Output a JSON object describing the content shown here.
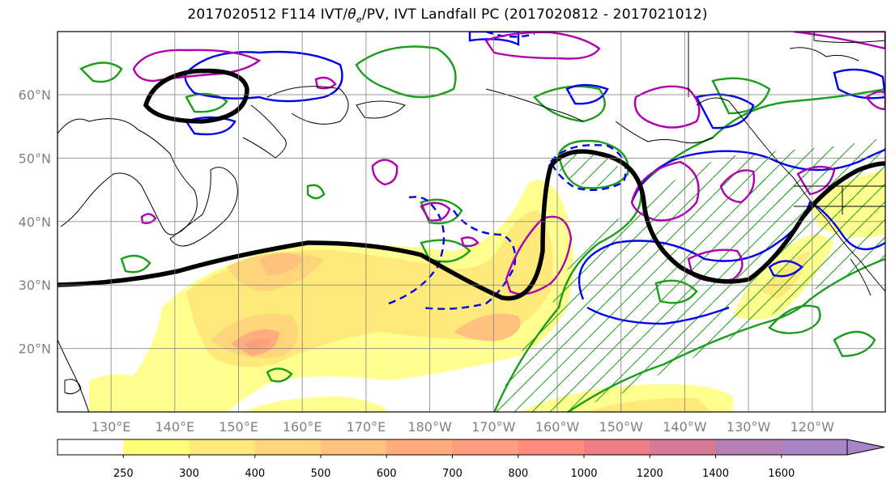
{
  "title_main": "2017020512 F114 IVT/",
  "title_theta": "θ",
  "title_sub": "e",
  "title_rest": "/PV, IVT Landfall PC (2017020812 - 2017021012)",
  "map": {
    "lat_labels": [
      "60°N",
      "50°N",
      "40°N",
      "30°N",
      "20°N"
    ],
    "lon_labels": [
      "130°E",
      "140°E",
      "150°E",
      "160°E",
      "170°E",
      "180°W",
      "170°W",
      "160°W",
      "150°W",
      "140°W",
      "130°W",
      "120°W"
    ],
    "lat_values": [
      60,
      50,
      40,
      30,
      20
    ],
    "lon_values": [
      130,
      140,
      150,
      160,
      170,
      180,
      190,
      200,
      210,
      220,
      230,
      240
    ],
    "extent": {
      "lon": [
        120,
        250
      ],
      "lat": [
        10,
        70
      ]
    },
    "grid": true,
    "contour_colors": {
      "theta_e": "#1a9e1a",
      "pv_positive": "#b000b0",
      "pv_negative": "#0000ee",
      "landfall_pc": "#000000",
      "land": "#000000"
    }
  },
  "colorbar": {
    "ticks": [
      "250",
      "300",
      "400",
      "500",
      "600",
      "700",
      "800",
      "1000",
      "1200",
      "1400",
      "1600"
    ],
    "colors": [
      "#ffffff",
      "#ffff76",
      "#ffe97a",
      "#ffd57c",
      "#ffc27e",
      "#ffad7e",
      "#ff9d7e",
      "#ff8a7d",
      "#ee7d84",
      "#d77a96",
      "#b780b4",
      "#a785c6"
    ],
    "extend": "max"
  }
}
